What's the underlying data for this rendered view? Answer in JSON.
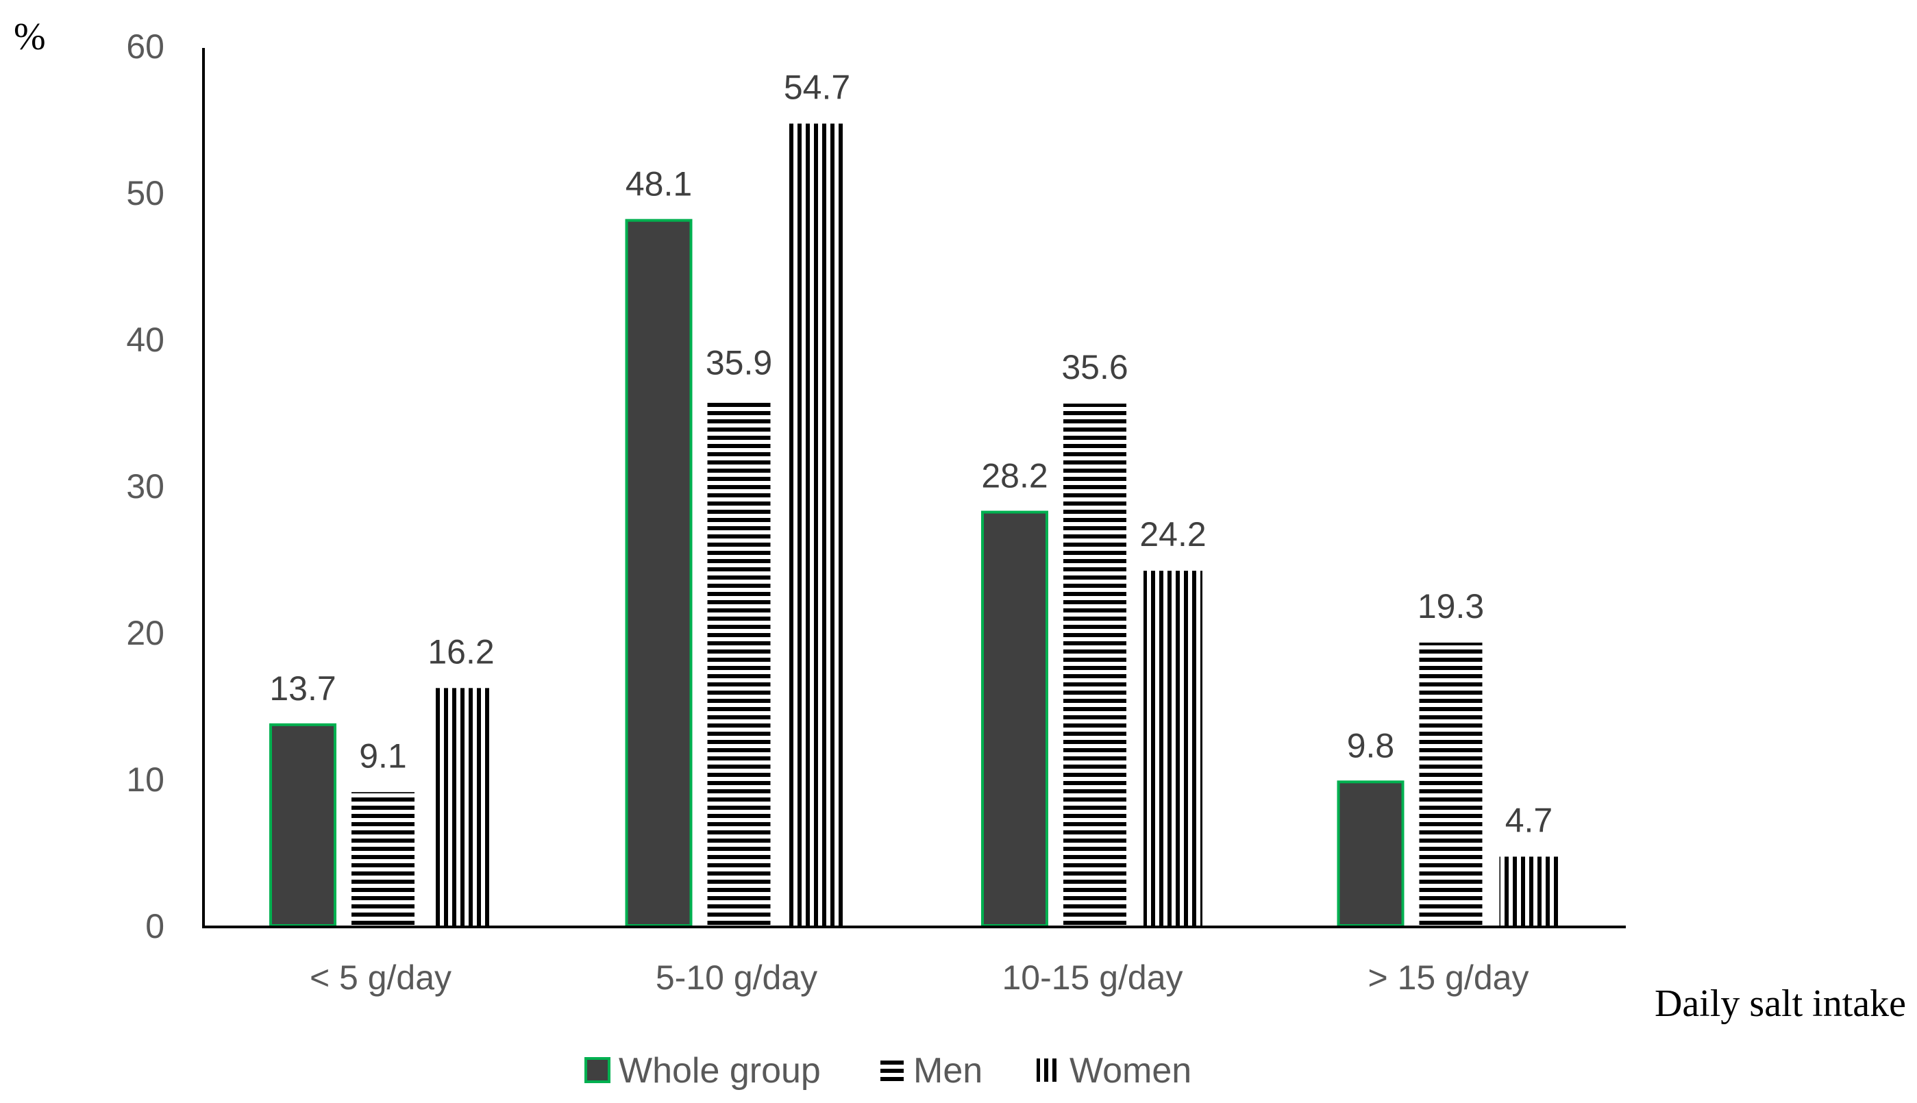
{
  "chart_data": {
    "type": "bar",
    "title": "",
    "ylabel": "%",
    "xlabel": "Daily salt intake",
    "ylim": [
      0,
      60
    ],
    "yticks": [
      "0",
      "10",
      "20",
      "30",
      "40",
      "50",
      "60"
    ],
    "categories": [
      "< 5 g/day",
      "5-10 g/day",
      "10-15 g/day",
      "> 15 g/day"
    ],
    "series": [
      {
        "name": "Whole group",
        "pattern": "solid",
        "values": [
          13.7,
          48.1,
          28.2,
          9.8
        ],
        "labels": [
          "13.7",
          "48.1",
          "28.2",
          "9.8"
        ]
      },
      {
        "name": "Men",
        "pattern": "horizontal-lines",
        "values": [
          9.1,
          35.9,
          35.6,
          19.3
        ],
        "labels": [
          "9.1",
          "35.9",
          "35.6",
          "19.3"
        ]
      },
      {
        "name": "Women",
        "pattern": "vertical-lines",
        "values": [
          16.2,
          54.7,
          24.2,
          4.7
        ],
        "labels": [
          "16.2",
          "54.7",
          "24.2",
          "4.7"
        ]
      }
    ],
    "grid": false,
    "legend_position": "bottom"
  },
  "colors": {
    "bar_fill": "#404040",
    "bar_outline": "#00b050",
    "hatch": "#000000",
    "axis": "#000000",
    "tick_text": "#595959",
    "label_text": "#404040"
  }
}
